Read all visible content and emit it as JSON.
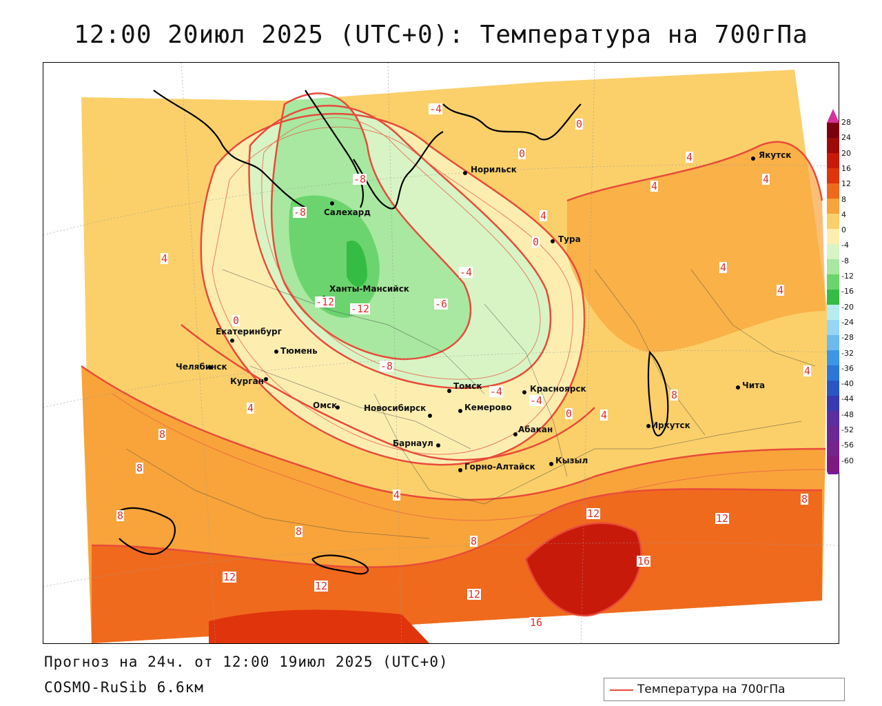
{
  "title": "12:00 20июл 2025 (UTC+0): Температура на 700гПа",
  "footer": {
    "forecast": "Прогноз на 24ч. от 12:00 19июл 2025 (UTC+0)",
    "model": "COSMO-RuSib 6.6км"
  },
  "legend": {
    "label": "Температура на 700гПа",
    "line_color": "#e84a3a"
  },
  "colorbar": {
    "ticks": [
      "28",
      "24",
      "20",
      "16",
      "12",
      "8",
      "4",
      "0",
      "-4",
      "-8",
      "-12",
      "-16",
      "-20",
      "-24",
      "-28",
      "-32",
      "-36",
      "-40",
      "-44",
      "-48",
      "-52",
      "-56",
      "-60"
    ],
    "colors": [
      "#7a0010",
      "#9e0a0a",
      "#c81a0a",
      "#e0340c",
      "#f06a1e",
      "#f8a43a",
      "#fbd06a",
      "#fdeeb0",
      "#d8f4c4",
      "#a8e8a0",
      "#6cd46e",
      "#34bc44",
      "#b6ecf0",
      "#96d6f4",
      "#6cbaf0",
      "#3c96e6",
      "#2c76d8",
      "#2a56c4",
      "#3838b0",
      "#5a2ea0",
      "#6a2894",
      "#74248a",
      "#7c1a80"
    ],
    "top_arrow_color": "#d8309a",
    "bottom_arrow_color": "#7a1aa0"
  },
  "cities": [
    {
      "name": "Якутск"
    },
    {
      "name": "Норильск"
    },
    {
      "name": "Салехард"
    },
    {
      "name": "Тура"
    },
    {
      "name": "Ханты-Мансийск"
    },
    {
      "name": "Екатеринбург"
    },
    {
      "name": "Тюмень"
    },
    {
      "name": "Челябинск"
    },
    {
      "name": "Курган"
    },
    {
      "name": "Томск"
    },
    {
      "name": "Красноярск"
    },
    {
      "name": "Омск"
    },
    {
      "name": "Новосибирск"
    },
    {
      "name": "Кемерово"
    },
    {
      "name": "Абакан"
    },
    {
      "name": "Барнаул"
    },
    {
      "name": "Иркутск"
    },
    {
      "name": "Чита"
    },
    {
      "name": "Горно-Алтайск"
    },
    {
      "name": "Кызыл"
    }
  ],
  "contour_labels": [
    "-4",
    "0",
    "0",
    "4",
    "-8",
    "-8",
    "4",
    "4",
    "4",
    "0",
    "4",
    "-4",
    "-6",
    "-12",
    "-12",
    "4",
    "4",
    "0",
    "-8",
    "-4",
    "-4",
    "0",
    "4",
    "8",
    "4",
    "4",
    "8",
    "8",
    "8",
    "8",
    "4",
    "12",
    "12",
    "8",
    "12",
    "12",
    "12",
    "16",
    "16",
    "8"
  ]
}
